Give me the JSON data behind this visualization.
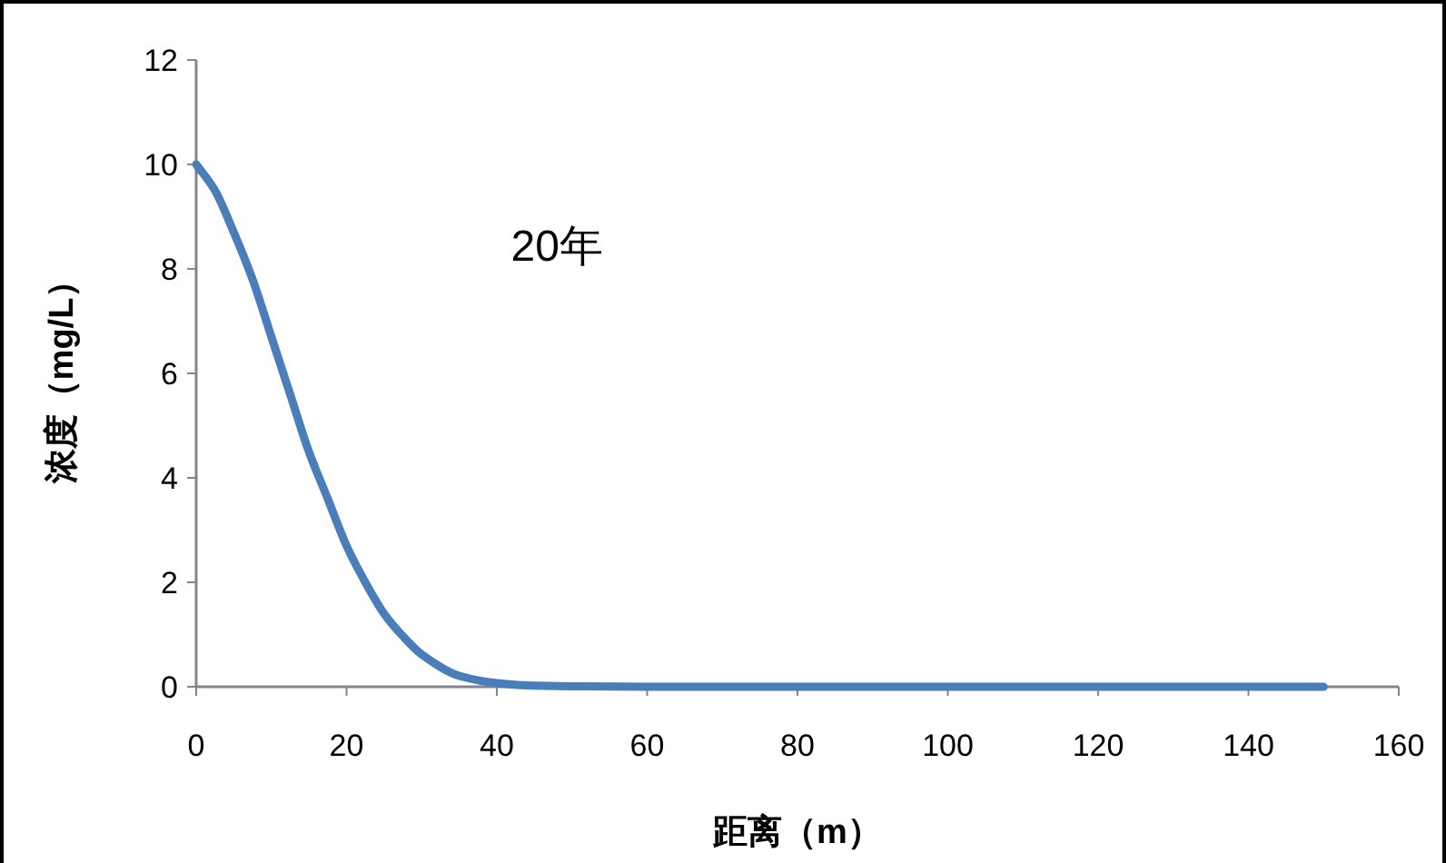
{
  "chart_data": {
    "type": "line",
    "xlabel": "距离（m）",
    "ylabel": "浓度（mg/L）",
    "annotations": [
      "20年"
    ],
    "series": [
      {
        "color": "#4a7ebb",
        "x": [
          0,
          2.5,
          5,
          7.5,
          10,
          12.5,
          15,
          17.5,
          20,
          22.5,
          25,
          27.5,
          30,
          35,
          40,
          45,
          50,
          60,
          80,
          100,
          120,
          150
        ],
        "values": [
          10,
          9.5,
          8.7,
          7.8,
          6.7,
          5.6,
          4.5,
          3.6,
          2.7,
          2,
          1.4,
          0.97,
          0.62,
          0.21,
          0.07,
          0.02,
          0.01,
          0,
          0,
          0,
          0,
          0
        ]
      }
    ],
    "xlim": [
      0,
      160
    ],
    "xticks": [
      0,
      20,
      40,
      60,
      80,
      100,
      120,
      140,
      160
    ],
    "ylim": [
      0,
      12
    ],
    "yticks": [
      0,
      2,
      4,
      6,
      8,
      10,
      12
    ],
    "grid": false,
    "marker": "none",
    "line_style": "solid"
  }
}
